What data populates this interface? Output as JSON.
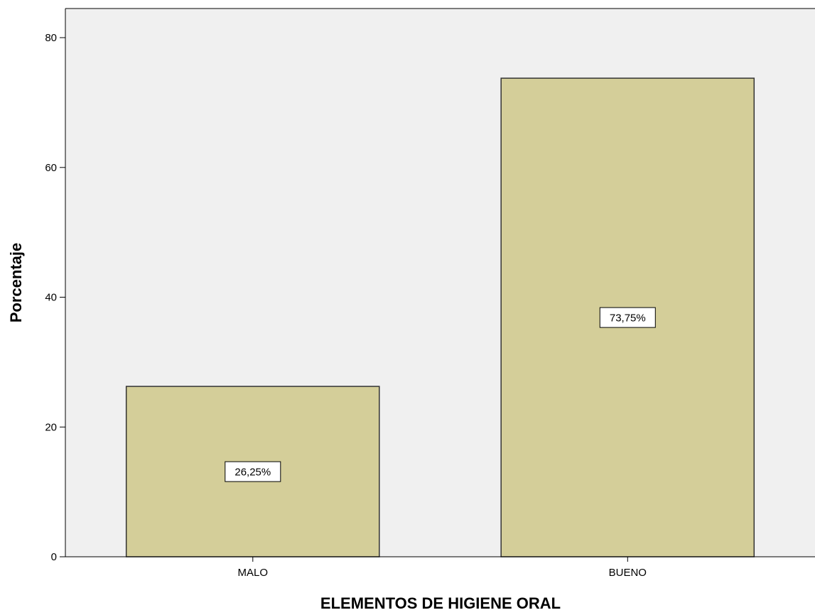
{
  "chart_data": {
    "type": "bar",
    "categories": [
      "MALO",
      "BUENO"
    ],
    "values": [
      26.25,
      73.75
    ],
    "data_labels": [
      "26,25%",
      "73,75%"
    ],
    "title": "",
    "xlabel": "ELEMENTOS DE HIGIENE ORAL",
    "ylabel": "Porcentaje",
    "ylim": [
      0,
      80
    ],
    "yticks": [
      0,
      20,
      40,
      60,
      80
    ],
    "ytick_labels": [
      "0",
      "20",
      "40",
      "60",
      "80"
    ],
    "grid": false,
    "legend": "none",
    "colors": {
      "bar_fill": "#d4ce99",
      "bar_stroke": "#333333",
      "plot_background": "#f0f0f0",
      "axis": "#000000",
      "label_box_fill": "#ffffff"
    }
  }
}
